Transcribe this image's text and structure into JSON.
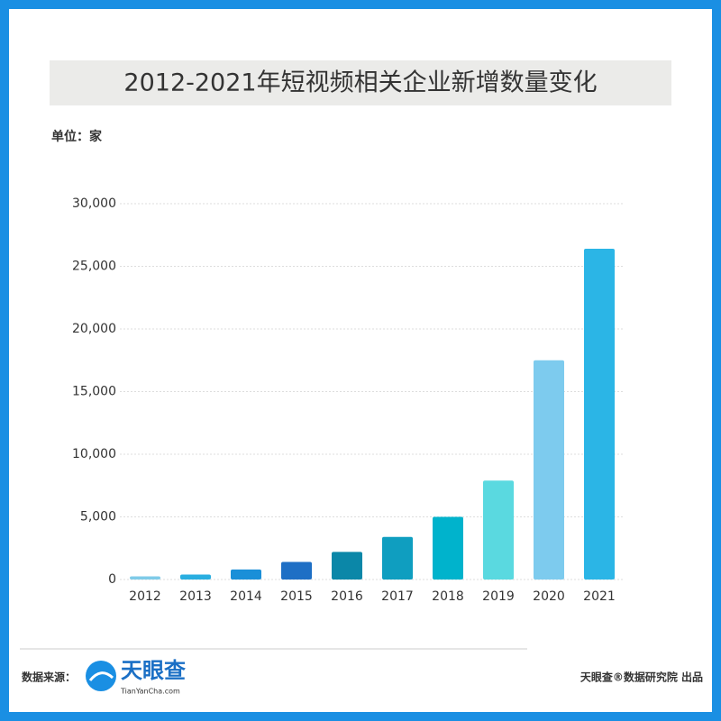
{
  "chart_data": {
    "type": "bar",
    "title": "2012-2021年短视频相关企业新增数量变化",
    "unit_label": "单位：家",
    "categories": [
      "2012",
      "2013",
      "2014",
      "2015",
      "2016",
      "2017",
      "2018",
      "2019",
      "2020",
      "2021"
    ],
    "values": [
      250,
      400,
      800,
      1400,
      2200,
      3400,
      5000,
      7900,
      17500,
      26400
    ],
    "colors": [
      "#7fcbe8",
      "#29aee0",
      "#1a8fd8",
      "#1e6fc5",
      "#0b87a8",
      "#0f9ec0",
      "#00b3cc",
      "#5ad9e0",
      "#7dcbee",
      "#2bb5e6"
    ],
    "ylim": [
      0,
      30000
    ],
    "yticks": [
      0,
      {
        "value": 5000,
        "label": "5,000"
      },
      {
        "value": 10000,
        "label": "10,000"
      },
      {
        "value": 15000,
        "label": "15,000"
      },
      {
        "value": 20000,
        "label": "20,000"
      },
      {
        "value": 25000,
        "label": "25,000"
      },
      {
        "value": 30000,
        "label": "30,000"
      }
    ],
    "grid": true
  },
  "footer": {
    "source_label": "数据来源：",
    "logo_name": "天眼查",
    "logo_url": "TianYanCha.com",
    "credit": "天眼查®数据研究院 出品"
  }
}
